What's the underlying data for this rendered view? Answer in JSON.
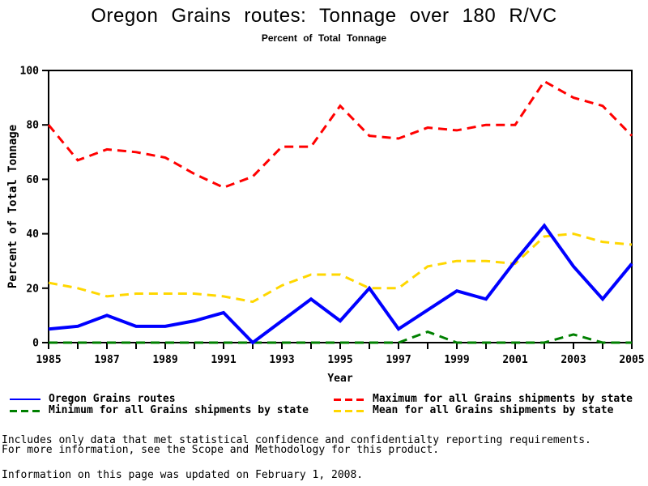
{
  "title": "Oregon Grains routes: Tonnage over 180 R/VC",
  "subtitle": "Percent of Total Tonnage",
  "chart_data": {
    "type": "line",
    "title": "Oregon Grains routes: Tonnage over 180 R/VC",
    "subtitle": "Percent of Total Tonnage",
    "xlabel": "Year",
    "ylabel": "Percent of Total Tonnage",
    "xlim": [
      1985,
      2005
    ],
    "ylim": [
      0,
      100
    ],
    "y_ticks": [
      0,
      20,
      40,
      60,
      80,
      100
    ],
    "x_label_step": 2,
    "grid": false,
    "legend_position": "bottom",
    "x": [
      1985,
      1986,
      1987,
      1988,
      1989,
      1990,
      1991,
      1992,
      1993,
      1994,
      1995,
      1996,
      1997,
      1998,
      1999,
      2000,
      2001,
      2002,
      2003,
      2004,
      2005
    ],
    "series": [
      {
        "name": "Oregon Grains routes",
        "color": "#0000ff",
        "style": "solid",
        "values": [
          5,
          6,
          10,
          6,
          6,
          8,
          11,
          0,
          8,
          16,
          8,
          20,
          5,
          12,
          19,
          16,
          30,
          43,
          28,
          16,
          29
        ]
      },
      {
        "name": "Maximum for all Grains shipments by state",
        "color": "#ff0000",
        "style": "dashed",
        "values": [
          80,
          67,
          71,
          70,
          68,
          62,
          57,
          61,
          72,
          72,
          87,
          76,
          75,
          79,
          78,
          80,
          80,
          96,
          90,
          87,
          76
        ]
      },
      {
        "name": "Minimum for all Grains shipments by state",
        "color": "#008000",
        "style": "dashed",
        "values": [
          0,
          0,
          0,
          0,
          0,
          0,
          0,
          0,
          0,
          0,
          0,
          0,
          0,
          4,
          0,
          0,
          0,
          0,
          3,
          0,
          0
        ]
      },
      {
        "name": "Mean for all Grains shipments by state",
        "color": "#ffd700",
        "style": "dashed",
        "values": [
          22,
          20,
          17,
          18,
          18,
          18,
          17,
          15,
          21,
          25,
          25,
          20,
          20,
          28,
          30,
          30,
          29,
          39,
          40,
          37,
          36
        ]
      }
    ]
  },
  "legend": {
    "items": [
      {
        "label": "Oregon Grains routes",
        "color": "#0000ff",
        "style": "solid"
      },
      {
        "label": "Maximum for all Grains shipments by state",
        "color": "#ff0000",
        "style": "dashed"
      },
      {
        "label": "Minimum for all Grains shipments by state",
        "color": "#008000",
        "style": "dashed"
      },
      {
        "label": "Mean for all Grains shipments by state",
        "color": "#ffd700",
        "style": "dashed"
      }
    ]
  },
  "footnotes": {
    "line1": "Includes only data that met statistical confidence and confidentialty reporting requirements.",
    "line2": "For more information, see the Scope and Methodology for this product.",
    "updated": "Information on this page was updated on February 1, 2008."
  },
  "colors": {
    "axis": "#000000",
    "text": "#000000",
    "background": "#ffffff"
  }
}
